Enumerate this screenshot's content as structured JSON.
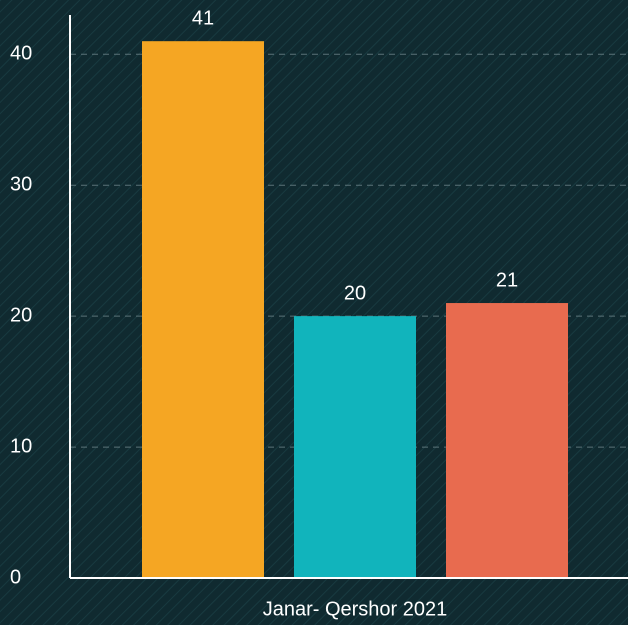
{
  "chart_data": {
    "type": "bar",
    "categories": [
      "Janar- Qershor 2021"
    ],
    "series": [
      {
        "color": "#f5a623",
        "values": [
          41
        ]
      },
      {
        "color": "#11b4bc",
        "values": [
          20
        ]
      },
      {
        "color": "#e86b4f",
        "values": [
          21
        ]
      }
    ],
    "ylim": [
      0,
      43
    ],
    "yticks": [
      0,
      10,
      20,
      30,
      40
    ],
    "grid": true
  }
}
